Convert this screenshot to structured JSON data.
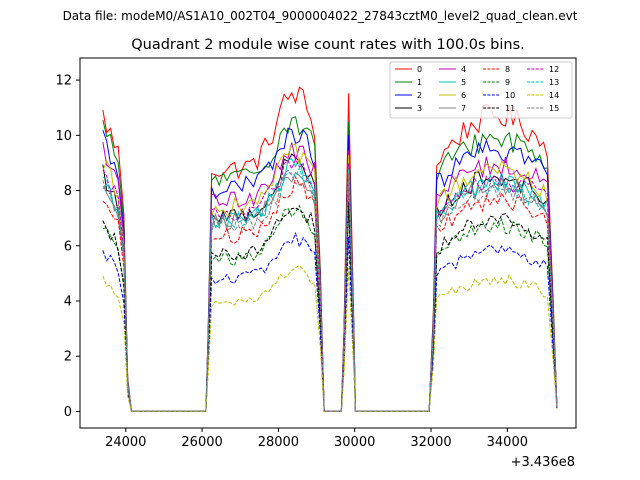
{
  "figure": {
    "suptitle": "Data file: modeM0/AS1A10_002T04_9000004022_27843cztM0_level2_quad_clean.evt"
  },
  "chart_data": {
    "type": "line",
    "title": "Quadrant 2 module wise count rates with 100.0s bins.",
    "xlabel": "",
    "ylabel": "",
    "x_offset_label": "+3.436e8",
    "xlim": [
      22800,
      35800
    ],
    "ylim": [
      -0.6,
      12.8
    ],
    "x_ticks": [
      24000,
      26000,
      28000,
      30000,
      32000,
      34000
    ],
    "y_ticks": [
      0,
      2,
      4,
      6,
      8,
      10,
      12
    ],
    "legend_position": "top-right",
    "segments": [
      {
        "start": 23400,
        "end": 24200
      },
      {
        "start": 26100,
        "end": 29200
      },
      {
        "start": 29700,
        "end": 30000
      },
      {
        "start": 32000,
        "end": 35300
      }
    ],
    "series": [
      {
        "name": "0",
        "color": "#ff0000",
        "dash": "solid",
        "level": 10.2,
        "peak": 12.0
      },
      {
        "name": "1",
        "color": "#008000",
        "dash": "solid",
        "level": 9.8,
        "peak": 10.9
      },
      {
        "name": "2",
        "color": "#0000ff",
        "dash": "solid",
        "level": 9.4,
        "peak": 10.4
      },
      {
        "name": "3",
        "color": "#000000",
        "dash": "solid",
        "level": 8.2,
        "peak": 9.5
      },
      {
        "name": "4",
        "color": "#bf00bf",
        "dash": "solid",
        "level": 8.9,
        "peak": 9.8
      },
      {
        "name": "5",
        "color": "#00bfbf",
        "dash": "solid",
        "level": 8.0,
        "peak": 9.2
      },
      {
        "name": "6",
        "color": "#bfbf00",
        "dash": "solid",
        "level": 8.6,
        "peak": 9.6
      },
      {
        "name": "7",
        "color": "#808080",
        "dash": "solid",
        "level": 8.0,
        "peak": 9.0
      },
      {
        "name": "8",
        "color": "#ff0000",
        "dash": "dashed",
        "level": 7.4,
        "peak": 8.5
      },
      {
        "name": "9",
        "color": "#008000",
        "dash": "dashed",
        "level": 6.4,
        "peak": 7.6
      },
      {
        "name": "10",
        "color": "#0000ff",
        "dash": "dashed",
        "level": 5.6,
        "peak": 6.5
      },
      {
        "name": "11",
        "color": "#000000",
        "dash": "dashed",
        "level": 6.6,
        "peak": 7.8
      },
      {
        "name": "12",
        "color": "#bf00bf",
        "dash": "dashed",
        "level": 8.3,
        "peak": 9.2
      },
      {
        "name": "13",
        "color": "#00bfbf",
        "dash": "dashed",
        "level": 8.0,
        "peak": 9.0
      },
      {
        "name": "14",
        "color": "#bfbf00",
        "dash": "dashed",
        "level": 4.6,
        "peak": 5.3
      },
      {
        "name": "15",
        "color": "#808080",
        "dash": "dashed",
        "level": 7.8,
        "peak": 8.8
      }
    ]
  }
}
